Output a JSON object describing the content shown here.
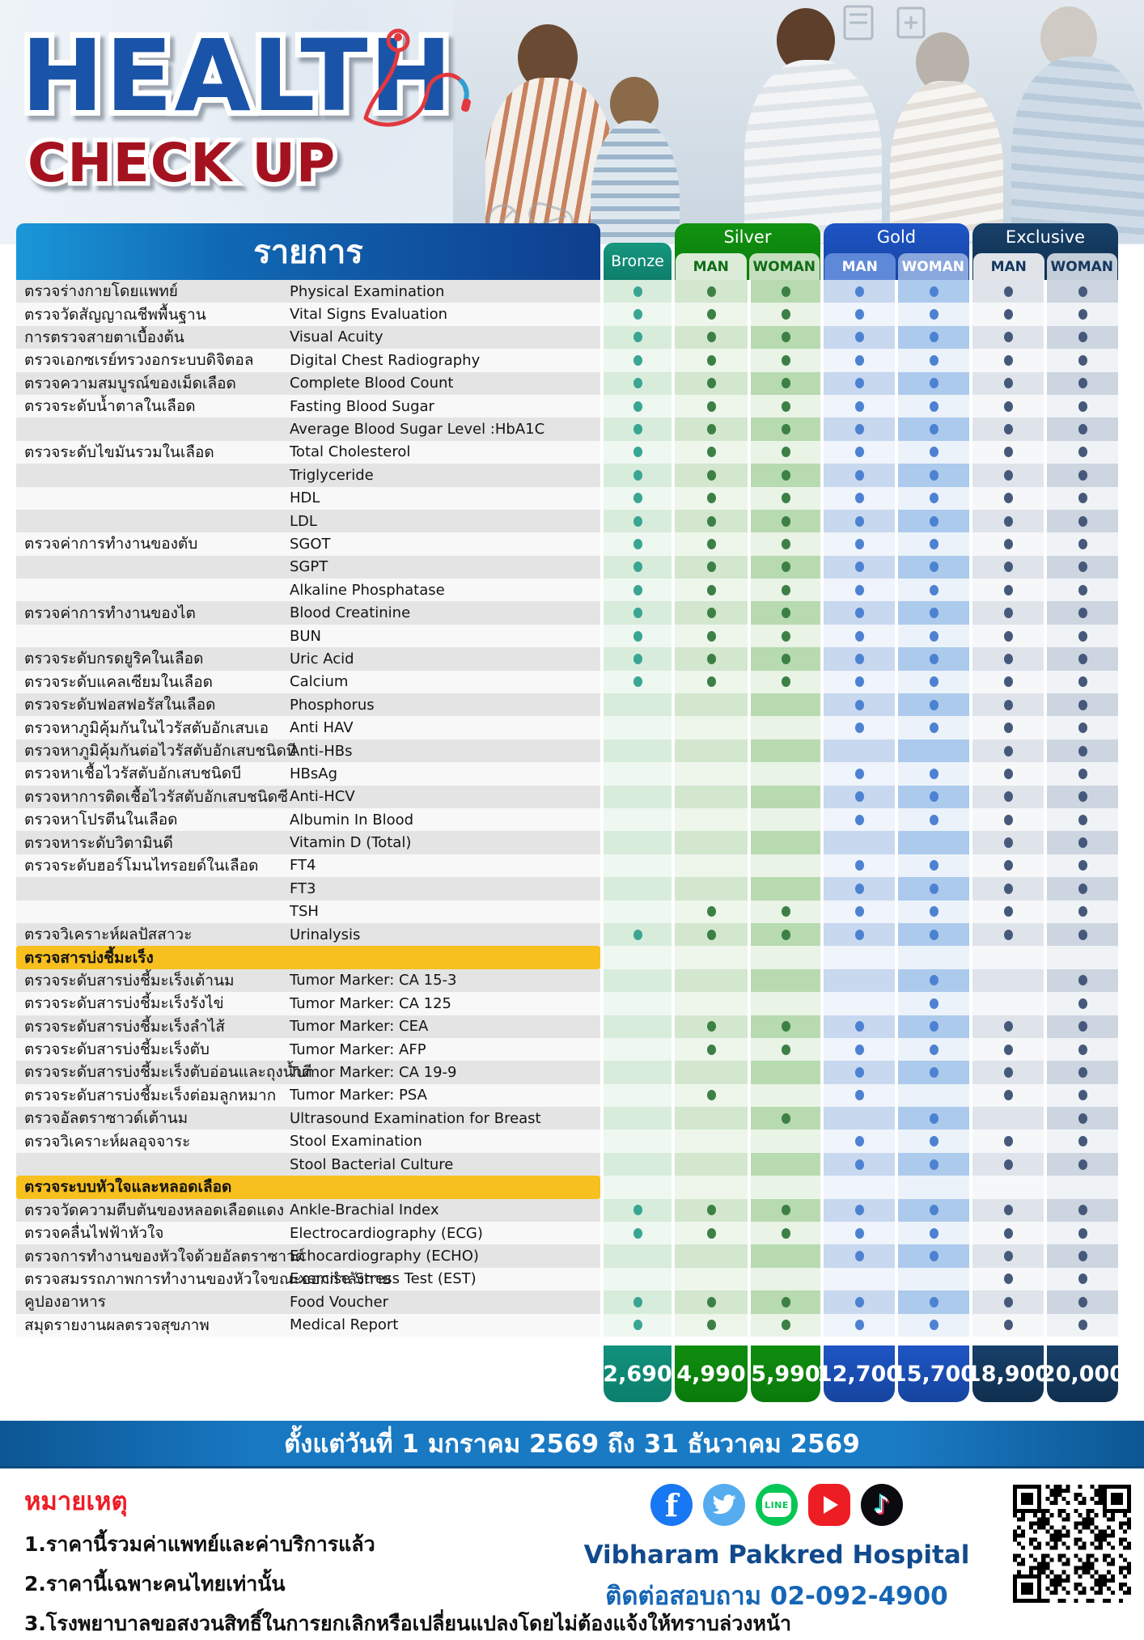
{
  "header": {
    "title_line1": "HEALTH",
    "title_line2": "CHECK UP"
  },
  "table": {
    "items_header": "รายการ",
    "packages": [
      {
        "name": "Bronze",
        "sub": [],
        "color": "#12917e"
      },
      {
        "name": "Silver",
        "sub": [
          "MAN",
          "WOMAN"
        ],
        "color": "#0e8a0e"
      },
      {
        "name": "Gold",
        "sub": [
          "MAN",
          "WOMAN"
        ],
        "color": "#1c50c0"
      },
      {
        "name": "Exclusive",
        "sub": [
          "MAN",
          "WOMAN"
        ],
        "color": "#133a63"
      }
    ],
    "column_keys": [
      "bronze",
      "silver_man",
      "silver_woman",
      "gold_man",
      "gold_woman",
      "exclusive_man",
      "exclusive_woman"
    ],
    "dot_colors": {
      "bronze": "#38a693",
      "silver": "#3c8045",
      "gold": "#4d82d2",
      "exclusive": "#46597b"
    },
    "rows": [
      {
        "type": "item",
        "th": "ตรวจร่างกายโดยแพทย์",
        "en": "Physical Examination",
        "dots": [
          1,
          1,
          1,
          1,
          1,
          1,
          1
        ]
      },
      {
        "type": "item",
        "th": "ตรวจวัดสัญญาณชีพพื้นฐาน",
        "en": "Vital Signs Evaluation",
        "dots": [
          1,
          1,
          1,
          1,
          1,
          1,
          1
        ]
      },
      {
        "type": "item",
        "th": "การตรวจสายตาเบื้องต้น",
        "en": "Visual Acuity",
        "dots": [
          1,
          1,
          1,
          1,
          1,
          1,
          1
        ]
      },
      {
        "type": "item",
        "th": "ตรวจเอกซเรย์ทรวงอกระบบดิจิตอล",
        "en": "Digital Chest Radiography",
        "dots": [
          1,
          1,
          1,
          1,
          1,
          1,
          1
        ]
      },
      {
        "type": "item",
        "th": "ตรวจความสมบูรณ์ของเม็ดเลือด",
        "en": "Complete Blood Count",
        "dots": [
          1,
          1,
          1,
          1,
          1,
          1,
          1
        ]
      },
      {
        "type": "item",
        "th": "ตรวจระดับน้ำตาลในเลือด",
        "en": "Fasting Blood Sugar",
        "dots": [
          1,
          1,
          1,
          1,
          1,
          1,
          1
        ]
      },
      {
        "type": "item",
        "th": "",
        "en": "Average Blood Sugar Level :HbA1C",
        "dots": [
          1,
          1,
          1,
          1,
          1,
          1,
          1
        ]
      },
      {
        "type": "item",
        "th": "ตรวจระดับไขมันรวมในเลือด",
        "en": "Total Cholesterol",
        "dots": [
          1,
          1,
          1,
          1,
          1,
          1,
          1
        ]
      },
      {
        "type": "item",
        "th": "",
        "en": "Triglyceride",
        "dots": [
          1,
          1,
          1,
          1,
          1,
          1,
          1
        ]
      },
      {
        "type": "item",
        "th": "",
        "en": "HDL",
        "dots": [
          1,
          1,
          1,
          1,
          1,
          1,
          1
        ]
      },
      {
        "type": "item",
        "th": "",
        "en": "LDL",
        "dots": [
          1,
          1,
          1,
          1,
          1,
          1,
          1
        ]
      },
      {
        "type": "item",
        "th": "ตรวจค่าการทำงานของตับ",
        "en": "SGOT",
        "dots": [
          1,
          1,
          1,
          1,
          1,
          1,
          1
        ]
      },
      {
        "type": "item",
        "th": "",
        "en": "SGPT",
        "dots": [
          1,
          1,
          1,
          1,
          1,
          1,
          1
        ]
      },
      {
        "type": "item",
        "th": "",
        "en": "Alkaline Phosphatase",
        "dots": [
          1,
          1,
          1,
          1,
          1,
          1,
          1
        ]
      },
      {
        "type": "item",
        "th": "ตรวจค่าการทำงานของไต",
        "en": "Blood Creatinine",
        "dots": [
          1,
          1,
          1,
          1,
          1,
          1,
          1
        ]
      },
      {
        "type": "item",
        "th": "",
        "en": "BUN",
        "dots": [
          1,
          1,
          1,
          1,
          1,
          1,
          1
        ]
      },
      {
        "type": "item",
        "th": "ตรวจระดับกรดยูริคในเลือด",
        "en": "Uric Acid",
        "dots": [
          1,
          1,
          1,
          1,
          1,
          1,
          1
        ]
      },
      {
        "type": "item",
        "th": "ตรวจระดับแคลเซียมในเลือด",
        "en": "Calcium",
        "dots": [
          1,
          1,
          1,
          1,
          1,
          1,
          1
        ]
      },
      {
        "type": "item",
        "th": "ตรวจระดับฟอสฟอรัสในเลือด",
        "en": "Phosphorus",
        "dots": [
          0,
          0,
          0,
          1,
          1,
          1,
          1
        ]
      },
      {
        "type": "item",
        "th": "ตรวจหาภูมิคุ้มกันในไวรัสตับอักเสบเอ",
        "en": "Anti HAV",
        "dots": [
          0,
          0,
          0,
          1,
          1,
          1,
          1
        ]
      },
      {
        "type": "item",
        "th": "ตรวจหาภูมิคุ้มกันต่อไวรัสตับอักเสบชนิดบี",
        "en": "Anti-HBs",
        "dots": [
          0,
          0,
          0,
          0,
          0,
          1,
          1
        ]
      },
      {
        "type": "item",
        "th": "ตรวจหาเชื้อไวรัสตับอักเสบชนิดบี",
        "en": "HBsAg",
        "dots": [
          0,
          0,
          0,
          1,
          1,
          1,
          1
        ]
      },
      {
        "type": "item",
        "th": "ตรวจหาการติดเชื้อไวรัสตับอักเสบชนิดซี",
        "en": "Anti-HCV",
        "dots": [
          0,
          0,
          0,
          1,
          1,
          1,
          1
        ]
      },
      {
        "type": "item",
        "th": "ตรวจหาโปรตีนในเลือด",
        "en": "Albumin In Blood",
        "dots": [
          0,
          0,
          0,
          1,
          1,
          1,
          1
        ]
      },
      {
        "type": "item",
        "th": "ตรวจหาระดับวิตามินดี",
        "en": "Vitamin D (Total)",
        "dots": [
          0,
          0,
          0,
          0,
          0,
          1,
          1
        ]
      },
      {
        "type": "item",
        "th": "ตรวจระดับฮอร์โมนไทรอยด์ในเลือด",
        "en": "FT4",
        "dots": [
          0,
          0,
          0,
          1,
          1,
          1,
          1
        ]
      },
      {
        "type": "item",
        "th": "",
        "en": "FT3",
        "dots": [
          0,
          0,
          0,
          1,
          1,
          1,
          1
        ]
      },
      {
        "type": "item",
        "th": "",
        "en": "TSH",
        "dots": [
          0,
          1,
          1,
          1,
          1,
          1,
          1
        ]
      },
      {
        "type": "item",
        "th": "ตรวจวิเคราะห์ผลปัสสาวะ",
        "en": "Urinalysis",
        "dots": [
          1,
          1,
          1,
          1,
          1,
          1,
          1
        ]
      },
      {
        "type": "section",
        "th": "ตรวจสารบ่งชี้มะเร็ง",
        "en": "",
        "dots": [
          0,
          0,
          0,
          0,
          0,
          0,
          0
        ]
      },
      {
        "type": "item",
        "th": "ตรวจระดับสารบ่งชี้มะเร็งเต้านม",
        "en": "Tumor Marker: CA 15-3",
        "dots": [
          0,
          0,
          0,
          0,
          1,
          0,
          1
        ]
      },
      {
        "type": "item",
        "th": "ตรวจระดับสารบ่งชี้มะเร็งรังไข่",
        "en": "Tumor Marker: CA 125",
        "dots": [
          0,
          0,
          0,
          0,
          1,
          0,
          1
        ]
      },
      {
        "type": "item",
        "th": "ตรวจระดับสารบ่งชี้มะเร็งลำไส้",
        "en": "Tumor Marker: CEA",
        "dots": [
          0,
          1,
          1,
          1,
          1,
          1,
          1
        ]
      },
      {
        "type": "item",
        "th": "ตรวจระดับสารบ่งชี้มะเร็งตับ",
        "en": "Tumor Marker: AFP",
        "dots": [
          0,
          1,
          1,
          1,
          1,
          1,
          1
        ]
      },
      {
        "type": "item",
        "th": "ตรวจระดับสารบ่งชี้มะเร็งตับอ่อนและถุงน้ำดี",
        "en": "Tumor Marker: CA 19-9",
        "dots": [
          0,
          0,
          0,
          1,
          1,
          1,
          1
        ]
      },
      {
        "type": "item",
        "th": "ตรวจระดับสารบ่งชี้มะเร็งต่อมลูกหมาก",
        "en": "Tumor Marker: PSA",
        "dots": [
          0,
          1,
          0,
          1,
          0,
          1,
          1
        ]
      },
      {
        "type": "item",
        "th": "ตรวจอัลตราซาวด์เต้านม",
        "en": "Ultrasound Examination for Breast",
        "dots": [
          0,
          0,
          1,
          0,
          1,
          0,
          1
        ]
      },
      {
        "type": "item",
        "th": "ตรวจวิเคราะห์ผลอุจจาระ",
        "en": "Stool Examination",
        "dots": [
          0,
          0,
          0,
          1,
          1,
          1,
          1
        ]
      },
      {
        "type": "item",
        "th": "",
        "en": "Stool Bacterial Culture",
        "dots": [
          0,
          0,
          0,
          1,
          1,
          1,
          1
        ]
      },
      {
        "type": "section",
        "th": "ตรวจระบบหัวใจและหลอดเลือด",
        "en": "",
        "dots": [
          0,
          0,
          0,
          0,
          0,
          0,
          0
        ]
      },
      {
        "type": "item",
        "th": "ตรวจวัดความตีบตันของหลอดเลือดแดง",
        "en": "Ankle-Brachial Index",
        "dots": [
          1,
          1,
          1,
          1,
          1,
          1,
          1
        ]
      },
      {
        "type": "item",
        "th": "ตรวจคลื่นไฟฟ้าหัวใจ",
        "en": "Electrocardiography (ECG)",
        "dots": [
          1,
          1,
          1,
          1,
          1,
          1,
          1
        ]
      },
      {
        "type": "item",
        "th": "ตรวจการทำงานของหัวใจด้วยอัลตราซาวด์",
        "en": "Echocardiography (ECHO)",
        "dots": [
          0,
          0,
          0,
          1,
          1,
          1,
          1
        ]
      },
      {
        "type": "item",
        "th": "ตรวจสมรรถภาพการทำงานของหัวใจขณะออกกำลังกาย",
        "en": "Exercise Stress Test (EST)",
        "dots": [
          0,
          0,
          0,
          0,
          0,
          1,
          1
        ]
      },
      {
        "type": "item",
        "th": "คูปองอาหาร",
        "en": "Food Voucher",
        "dots": [
          1,
          1,
          1,
          1,
          1,
          1,
          1
        ]
      },
      {
        "type": "item",
        "th": "สมุดรายงานผลตรวจสุขภาพ",
        "en": "Medical Report",
        "dots": [
          1,
          1,
          1,
          1,
          1,
          1,
          1
        ]
      }
    ],
    "prices": [
      "2,690",
      "4,990",
      "5,990",
      "12,700",
      "15,700",
      "18,900",
      "20,000"
    ]
  },
  "validity_banner": "ตั้งแต่วันที่ 1 มกราคม 2569 ถึง 31 ธันวาคม 2569",
  "footer": {
    "notes_title": "หมายเหตุ",
    "notes": [
      "1.ราคานี้รวมค่าแพทย์และค่าบริการแล้ว",
      "2.ราคานี้เฉพาะคนไทยเท่านั้น",
      "3.โรงพยาบาลขอสงวนสิทธิ์ในการยกเลิกหรือเปลี่ยนแปลงโดยไม่ต้องแจ้งให้ทราบล่วงหน้า"
    ],
    "hospital_name": "Vibharam Pakkred Hospital",
    "contact": "ติดต่อสอบถาม 02-092-4900",
    "social": [
      {
        "name": "facebook",
        "glyph": "f"
      },
      {
        "name": "twitter",
        "glyph": ""
      },
      {
        "name": "line",
        "glyph": "LINE"
      },
      {
        "name": "youtube",
        "glyph": ""
      },
      {
        "name": "tiktok",
        "glyph": "♪"
      }
    ]
  }
}
